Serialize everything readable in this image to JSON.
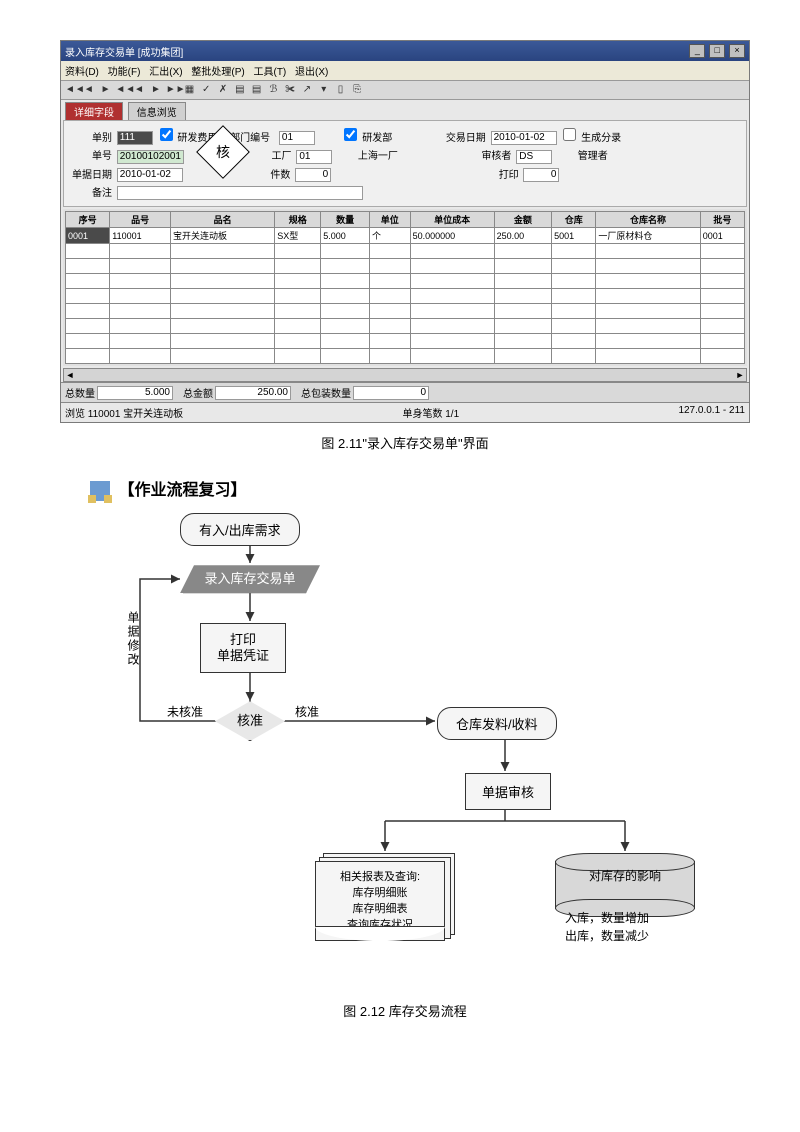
{
  "window": {
    "title": "录入库存交易单 [成功集团]",
    "menus": [
      "资料(D)",
      "功能(F)",
      "汇出(X)",
      "整批处理(P)",
      "工具(T)",
      "退出(X)"
    ],
    "toolbar_glyphs": [
      "◄◄",
      "◄",
      "►",
      "◄◄",
      "◄",
      "►",
      "►►",
      "▦",
      "✓",
      "✗",
      "",
      "",
      "ℬ",
      "✀",
      "↗",
      "▾",
      "",
      "⎘",
      ""
    ],
    "tabs": {
      "active": "详细字段",
      "inactive": "信息浏览"
    }
  },
  "form": {
    "type_label": "单别",
    "type_val": "111",
    "chk1_label": "研发费用领 部门编号",
    "dept_code": "01",
    "dept_chk_label": "研发部",
    "doc_label": "单号",
    "doc_val": "20100102001",
    "plant_label": "工厂",
    "plant_val": "01",
    "plant_name": "上海一厂",
    "date_label": "单据日期",
    "date_val": "2010-01-02",
    "count_label": "件数",
    "count_val": "0",
    "remark_label": "备注",
    "remark_val": "",
    "trans_date_label": "交易日期",
    "trans_date_val": "2010-01-02",
    "gencost_label": "生成分录",
    "auditor_label": "审核者",
    "auditor_val": "DS",
    "manager_label": "管理者",
    "print_label": "打印",
    "print_val": "0",
    "stamp": "核"
  },
  "grid": {
    "cols": [
      "序号",
      "品号",
      "品名",
      "规格",
      "数量",
      "单位",
      "单位成本",
      "金额",
      "仓库",
      "仓库名称",
      "批号"
    ],
    "row": [
      "0001",
      "110001",
      "宝开关连动板",
      "SX型",
      "5.000",
      "个",
      "50.000000",
      "250.00",
      "5001",
      "一厂原材料仓",
      "0001"
    ],
    "blank_rows": 8
  },
  "summary": {
    "qty_label": "总数量",
    "qty_val": "5.000",
    "amt_label": "总金额",
    "amt_val": "250.00",
    "pkg_label": "总包装数量",
    "pkg_val": "0"
  },
  "status": {
    "left": "浏览   110001 宝开关连动板",
    "mid": "单身笔数  1/1",
    "right": "127.0.0.1 - 211"
  },
  "caption1": "图 2.11\"录入库存交易单\"界面",
  "section_title": "【作业流程复习】",
  "flow": {
    "start": "有入/出库需求",
    "input": "录入库存交易单",
    "print": "打印\n单据凭证",
    "check": "核准",
    "loop_label": "单据修改",
    "un_label": "未核准",
    "ok_label": "核准",
    "ship": "仓库发料/收料",
    "audit": "单据审核",
    "doc_title": "相关报表及查询:",
    "doc_l1": "库存明细账",
    "doc_l2": "库存明细表",
    "doc_l3": "查询库存状况",
    "cyl_title": "对库存的影响",
    "cyl_l1": "入库，数量增加",
    "cyl_l2": "出库，数量减少"
  },
  "caption2": "图 2.12 库存交易流程",
  "colors": {
    "titlebar": "#3b5998",
    "para_fill": "#888888",
    "accent_tab": "#b03030"
  }
}
